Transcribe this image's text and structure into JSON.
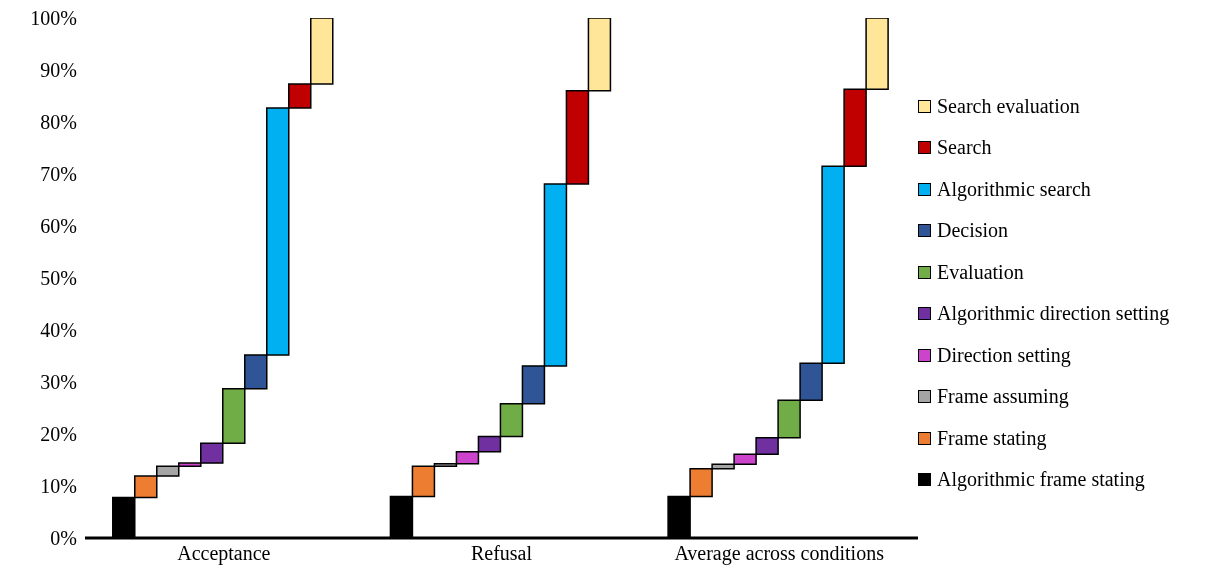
{
  "chart_data": {
    "type": "bar",
    "categories": [
      "Acceptance",
      "Refusal",
      "Average across conditions"
    ],
    "series": [
      {
        "name": "Algorithmic frame stating",
        "color": "#000000",
        "values": [
          7.8,
          8.0,
          8.0
        ],
        "base": [
          0,
          0,
          0
        ]
      },
      {
        "name": "Frame stating",
        "color": "#ed7d31",
        "values": [
          4.1,
          5.8,
          5.3
        ],
        "base": [
          7.8,
          8.0,
          8.0
        ]
      },
      {
        "name": "Frame assuming",
        "color": "#a5a5a5",
        "values": [
          1.9,
          0.5,
          0.9
        ],
        "base": [
          11.9,
          13.8,
          13.3
        ]
      },
      {
        "name": "Direction setting",
        "color": "#cc44cc",
        "values": [
          0.6,
          2.3,
          1.9
        ],
        "base": [
          13.8,
          14.3,
          14.2
        ]
      },
      {
        "name": "Algorithmic direction setting",
        "color": "#7030a0",
        "values": [
          3.8,
          2.9,
          3.2
        ],
        "base": [
          14.4,
          16.6,
          16.1
        ]
      },
      {
        "name": "Evaluation",
        "color": "#70ad47",
        "values": [
          10.5,
          6.3,
          7.2
        ],
        "base": [
          18.2,
          19.5,
          19.3
        ]
      },
      {
        "name": "Decision",
        "color": "#2f5597",
        "values": [
          6.5,
          7.3,
          7.1
        ],
        "base": [
          28.7,
          25.8,
          26.5
        ]
      },
      {
        "name": "Algorithmic search",
        "color": "#00b0f0",
        "values": [
          47.5,
          35.0,
          37.9
        ],
        "base": [
          35.2,
          33.1,
          33.6
        ]
      },
      {
        "name": "Search",
        "color": "#c00000",
        "values": [
          4.6,
          17.9,
          14.8
        ],
        "base": [
          82.7,
          68.1,
          71.5
        ]
      },
      {
        "name": "Search evaluation",
        "color": "#ffe699",
        "values": [
          12.7,
          14.0,
          13.7
        ],
        "base": [
          87.3,
          86.0,
          86.3
        ]
      }
    ],
    "ylim": [
      0,
      100
    ],
    "yticks": [
      {
        "value": 0,
        "label": "0%"
      },
      {
        "value": 10,
        "label": "10%"
      },
      {
        "value": 20,
        "label": "20%"
      },
      {
        "value": 30,
        "label": "30%"
      },
      {
        "value": 40,
        "label": "40%"
      },
      {
        "value": 50,
        "label": "50%"
      },
      {
        "value": 60,
        "label": "60%"
      },
      {
        "value": 70,
        "label": "70%"
      },
      {
        "value": 80,
        "label": "80%"
      },
      {
        "value": 90,
        "label": "90%"
      },
      {
        "value": 100,
        "label": "100%"
      }
    ],
    "grid": false,
    "legend": "right"
  }
}
